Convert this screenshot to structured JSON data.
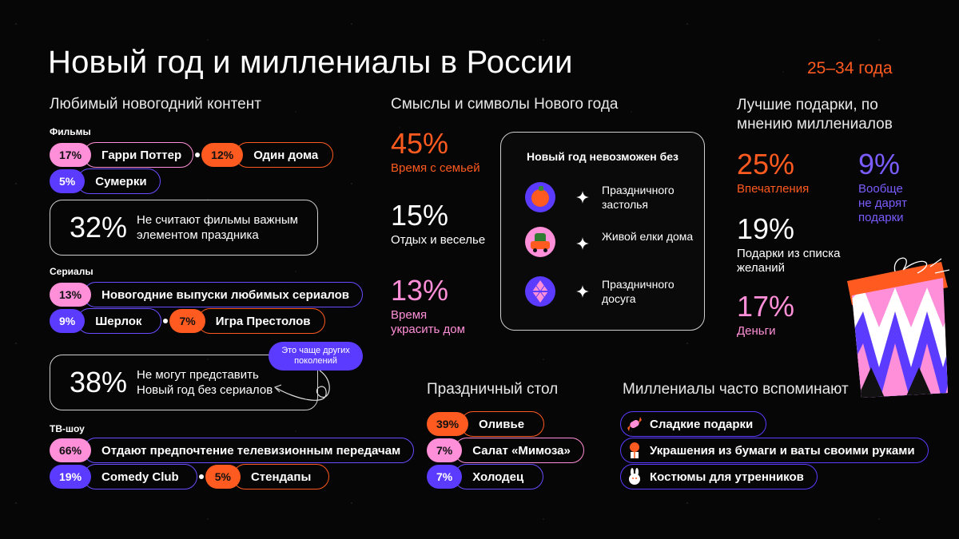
{
  "title": "Новый год и миллениалы в России",
  "age_range": "25–34 года",
  "content": {
    "heading": "Любимый новогодний контент",
    "films": {
      "label": "Фильмы",
      "items": [
        {
          "pct": "17%",
          "name": "Гарри Поттер"
        },
        {
          "pct": "12%",
          "name": "Один дома"
        },
        {
          "pct": "5%",
          "name": "Сумерки"
        }
      ],
      "box_pct": "32%",
      "box_text": "Не считают фильмы важным элементом праздника"
    },
    "series": {
      "label": "Сериалы",
      "items": [
        {
          "pct": "13%",
          "name": "Новогодние выпуски любимых сериалов"
        },
        {
          "pct": "9%",
          "name": "Шерлок"
        },
        {
          "pct": "7%",
          "name": "Игра Престолов"
        }
      ],
      "box_pct": "38%",
      "box_text": "Не могут представить Новый год без сериалов",
      "note": "Это чаще других поколений"
    },
    "tv": {
      "label": "ТВ-шоу",
      "items": [
        {
          "pct": "66%",
          "name": "Отдают предпочтение телевизионным передачам"
        },
        {
          "pct": "19%",
          "name": "Comedy Club"
        },
        {
          "pct": "5%",
          "name": "Стендапы"
        }
      ]
    }
  },
  "meanings": {
    "heading": "Смыслы и символы Нового года",
    "stats": [
      {
        "pct": "45%",
        "label": "Время с семьей"
      },
      {
        "pct": "15%",
        "label": "Отдых и веселье"
      },
      {
        "pct": "13%",
        "label": "Время украсить дом"
      }
    ],
    "card_title": "Новый год невозможен без",
    "card_items": [
      {
        "text": "Праздничного застолья",
        "icon": "orange-icon"
      },
      {
        "text": "Живой елки дома",
        "icon": "car-with-tree-icon"
      },
      {
        "text": "Праздничного досуга",
        "icon": "ornament-icon"
      }
    ]
  },
  "gifts": {
    "heading": "Лучшие подарки, по мнению миллениалов",
    "stats": [
      {
        "pct": "25%",
        "label": "Впечатления"
      },
      {
        "pct": "9%",
        "label": "Вообще не дарят подарки"
      },
      {
        "pct": "19%",
        "label": "Подарки из списка желаний"
      },
      {
        "pct": "17%",
        "label": "Деньги"
      }
    ]
  },
  "table": {
    "heading": "Праздничный стол",
    "items": [
      {
        "pct": "39%",
        "name": "Оливье"
      },
      {
        "pct": "7%",
        "name": "Салат «Мимоза»"
      },
      {
        "pct": "7%",
        "name": "Холодец"
      }
    ]
  },
  "memories": {
    "heading": "Миллениалы часто вспоминают",
    "items": [
      {
        "text": "Сладкие подарки",
        "icon": "candy-icon"
      },
      {
        "text": "Украшения из бумаги и ваты своими руками",
        "icon": "paper-decoration-icon"
      },
      {
        "text": "Костюмы для утренников",
        "icon": "bunny-costume-icon"
      }
    ]
  },
  "colors": {
    "orange": "#ff5a1f",
    "pink": "#ff8fd8",
    "violet": "#5b3bff"
  }
}
